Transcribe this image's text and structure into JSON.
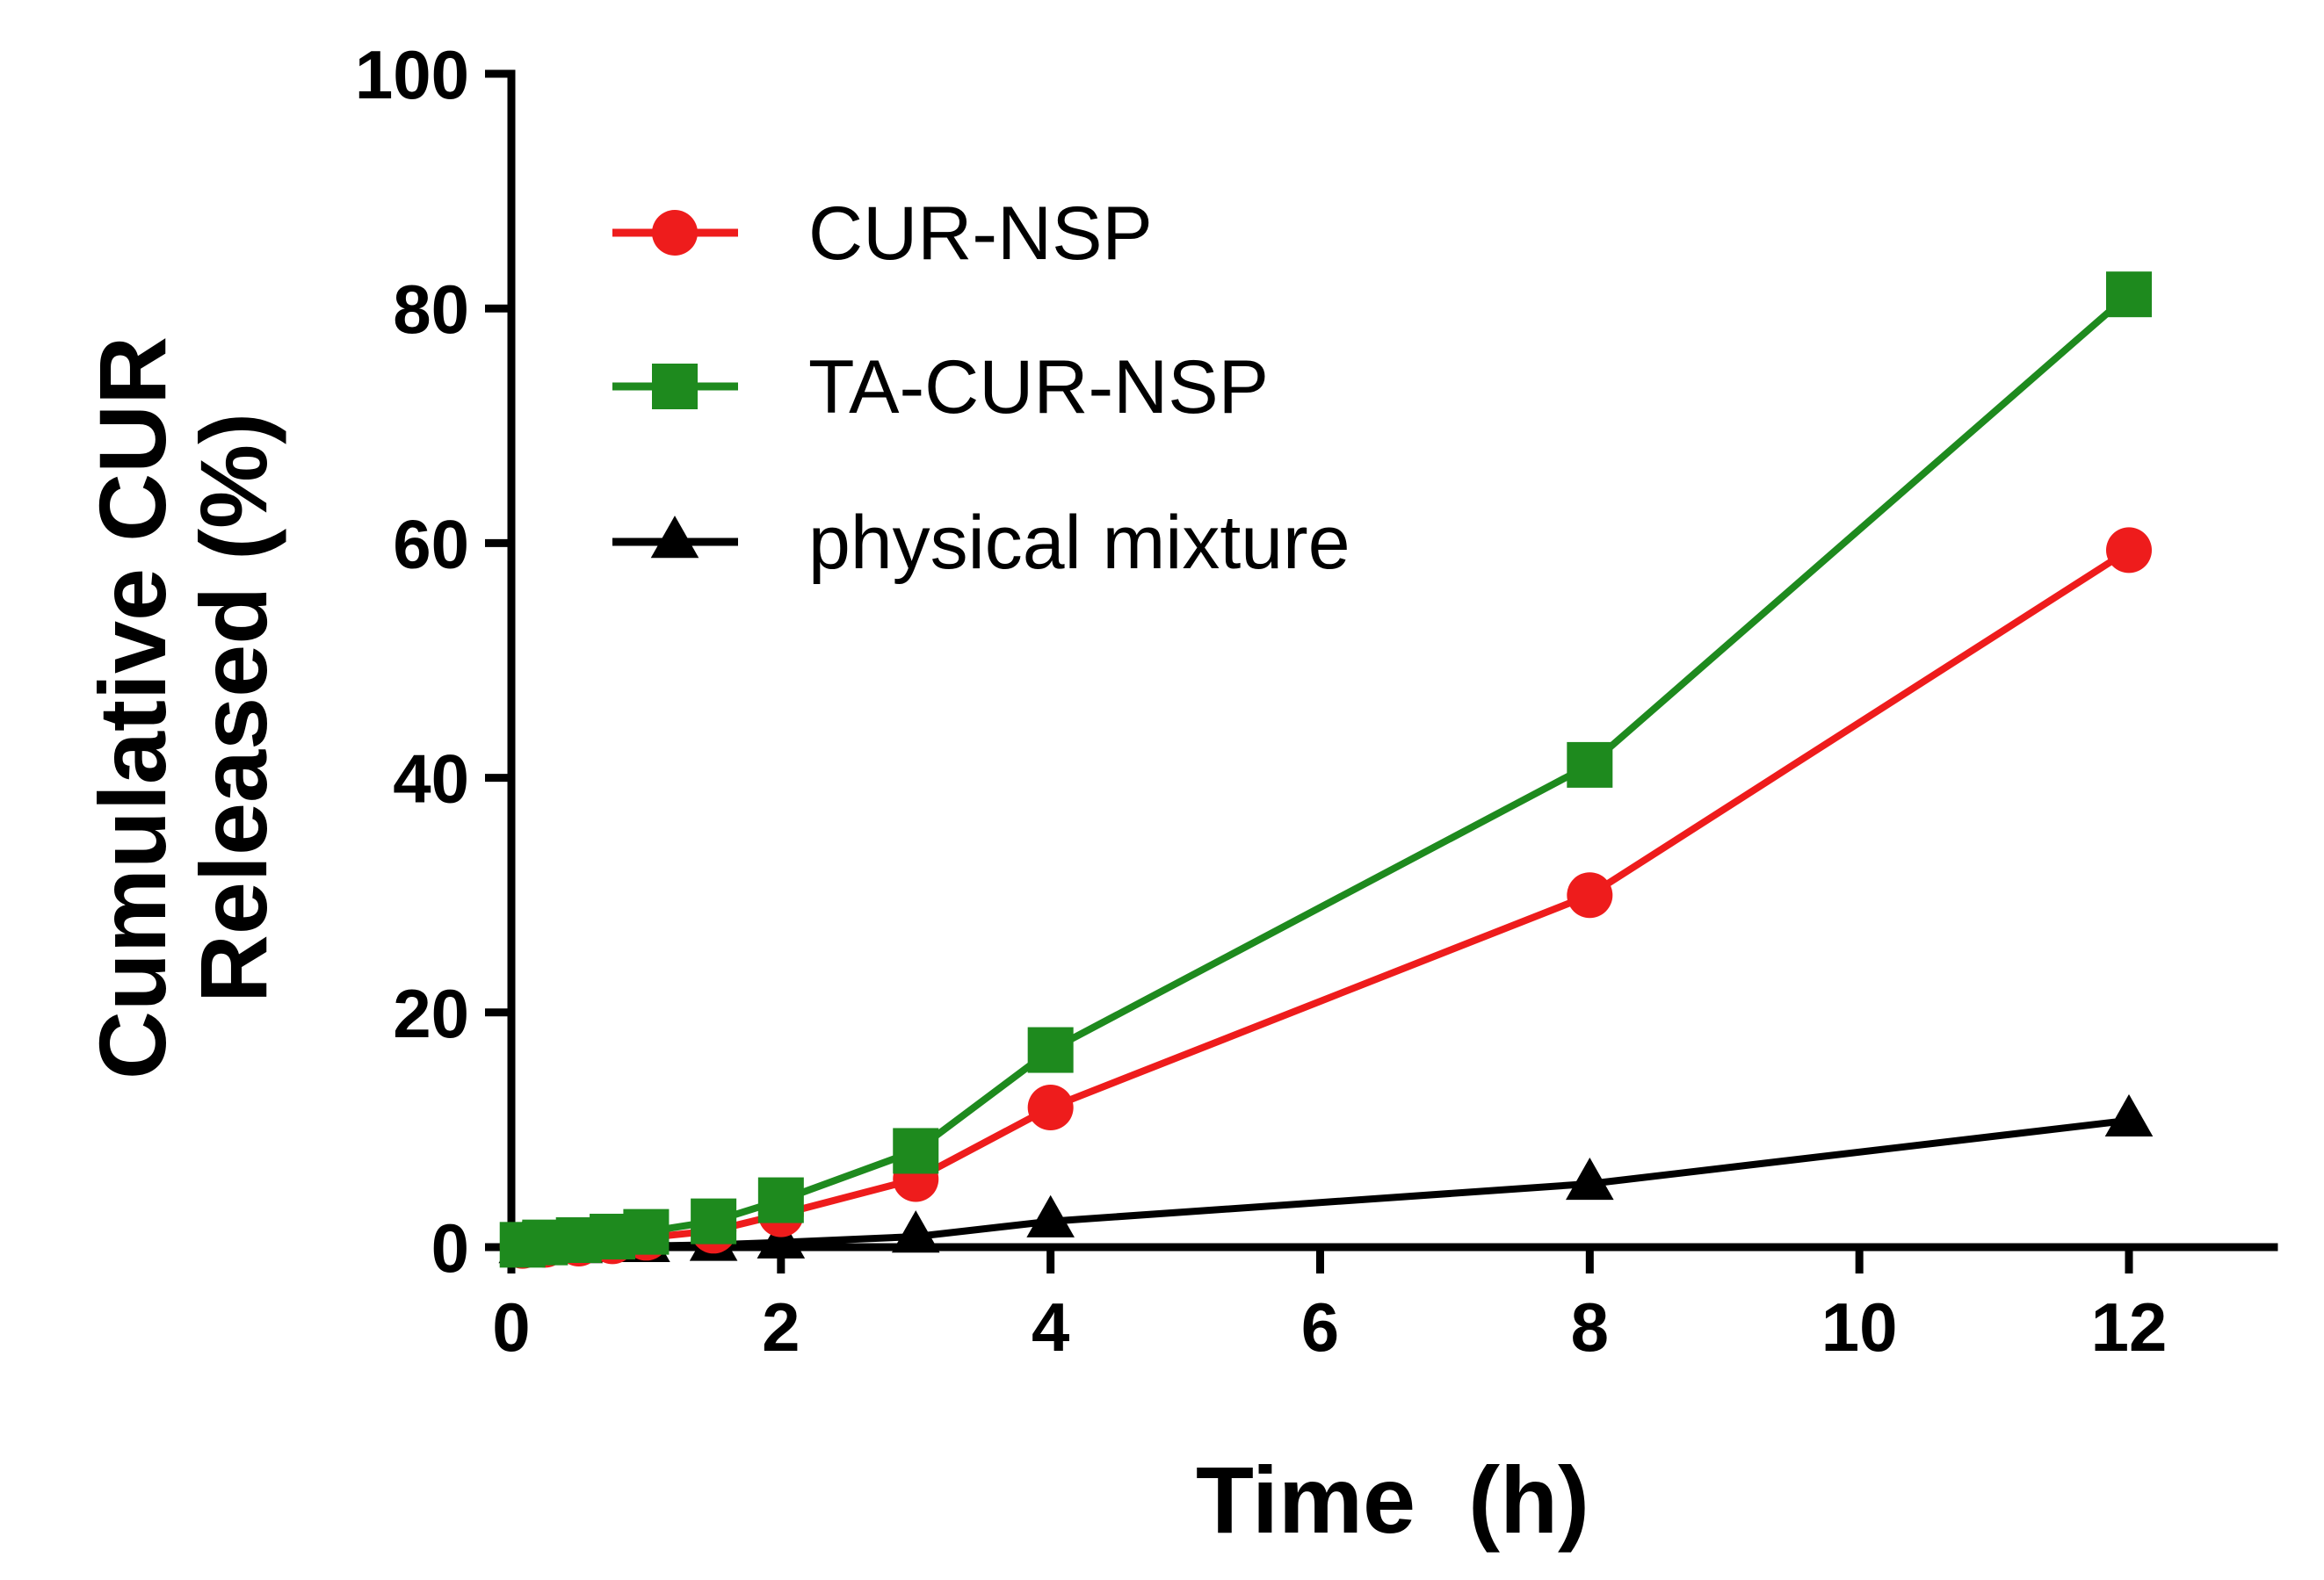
{
  "chart_data": {
    "type": "line",
    "title": "",
    "xlabel": "Time  (h)",
    "ylabel_lines": [
      "Cumulative CUR",
      "Released (%)"
    ],
    "xlim": [
      0,
      13
    ],
    "ylim": [
      0,
      100
    ],
    "x_ticks": [
      0,
      2,
      4,
      6,
      8,
      10,
      12
    ],
    "y_ticks": [
      0,
      20,
      40,
      60,
      80,
      100
    ],
    "grid": false,
    "legend_position": "top-left",
    "series": [
      {
        "name": "CUR-NSP",
        "color": "#ee1c1c",
        "marker": "circle",
        "x": [
          0.083,
          0.25,
          0.5,
          0.75,
          1,
          1.5,
          2,
          3,
          4,
          8,
          12
        ],
        "y": [
          0.1,
          0.2,
          0.3,
          0.5,
          0.8,
          1.4,
          2.8,
          5.8,
          11.9,
          30.0,
          59.4
        ]
      },
      {
        "name": "TA-CUR-NSP",
        "color": "#1e8a1e",
        "marker": "square",
        "x": [
          0.083,
          0.25,
          0.5,
          0.75,
          1,
          1.5,
          2,
          3,
          4,
          8,
          12
        ],
        "y": [
          0.2,
          0.4,
          0.6,
          0.9,
          1.3,
          2.2,
          4.0,
          8.2,
          16.8,
          41.1,
          81.2
        ]
      },
      {
        "name": "physical mixture",
        "color": "#000000",
        "marker": "triangle",
        "x": [
          0.083,
          0.25,
          0.5,
          0.75,
          1,
          1.5,
          2,
          3,
          4,
          8,
          12
        ],
        "y": [
          0,
          0,
          0,
          0.1,
          0.1,
          0.2,
          0.4,
          0.9,
          2.2,
          5.4,
          10.8
        ]
      }
    ]
  }
}
